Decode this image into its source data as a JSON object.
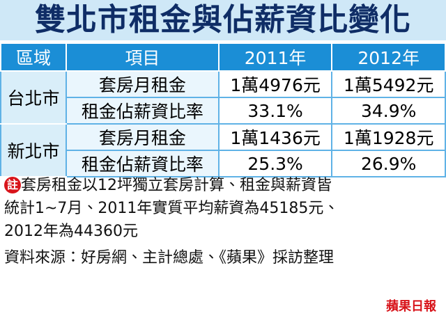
{
  "header": {
    "title": "雙北市租金與佔薪資比變化"
  },
  "table": {
    "columns": [
      "區域",
      "項目",
      "2011年",
      "2012年"
    ],
    "groups": [
      {
        "region": "台北市",
        "rows": [
          [
            "套房月租金",
            "1萬4976元",
            "1萬5492元"
          ],
          [
            "租金佔薪資比率",
            "33.1%",
            "34.9%"
          ]
        ]
      },
      {
        "region": "新北市",
        "rows": [
          [
            "套房月租金",
            "1萬1436元",
            "1萬1928元"
          ],
          [
            "租金佔薪資比率",
            "25.3%",
            "26.9%"
          ]
        ]
      }
    ]
  },
  "note": {
    "label": "註",
    "lines": [
      "套房租金以12坪獨立套房計算、租金與薪資皆",
      "統計1~7月、2011年實質平均薪資為45185元、",
      "2012年為44360元"
    ]
  },
  "source": "資料來源：好房網、主計總處、《蘋果》採訪整理",
  "logo": "蘋果日報"
}
